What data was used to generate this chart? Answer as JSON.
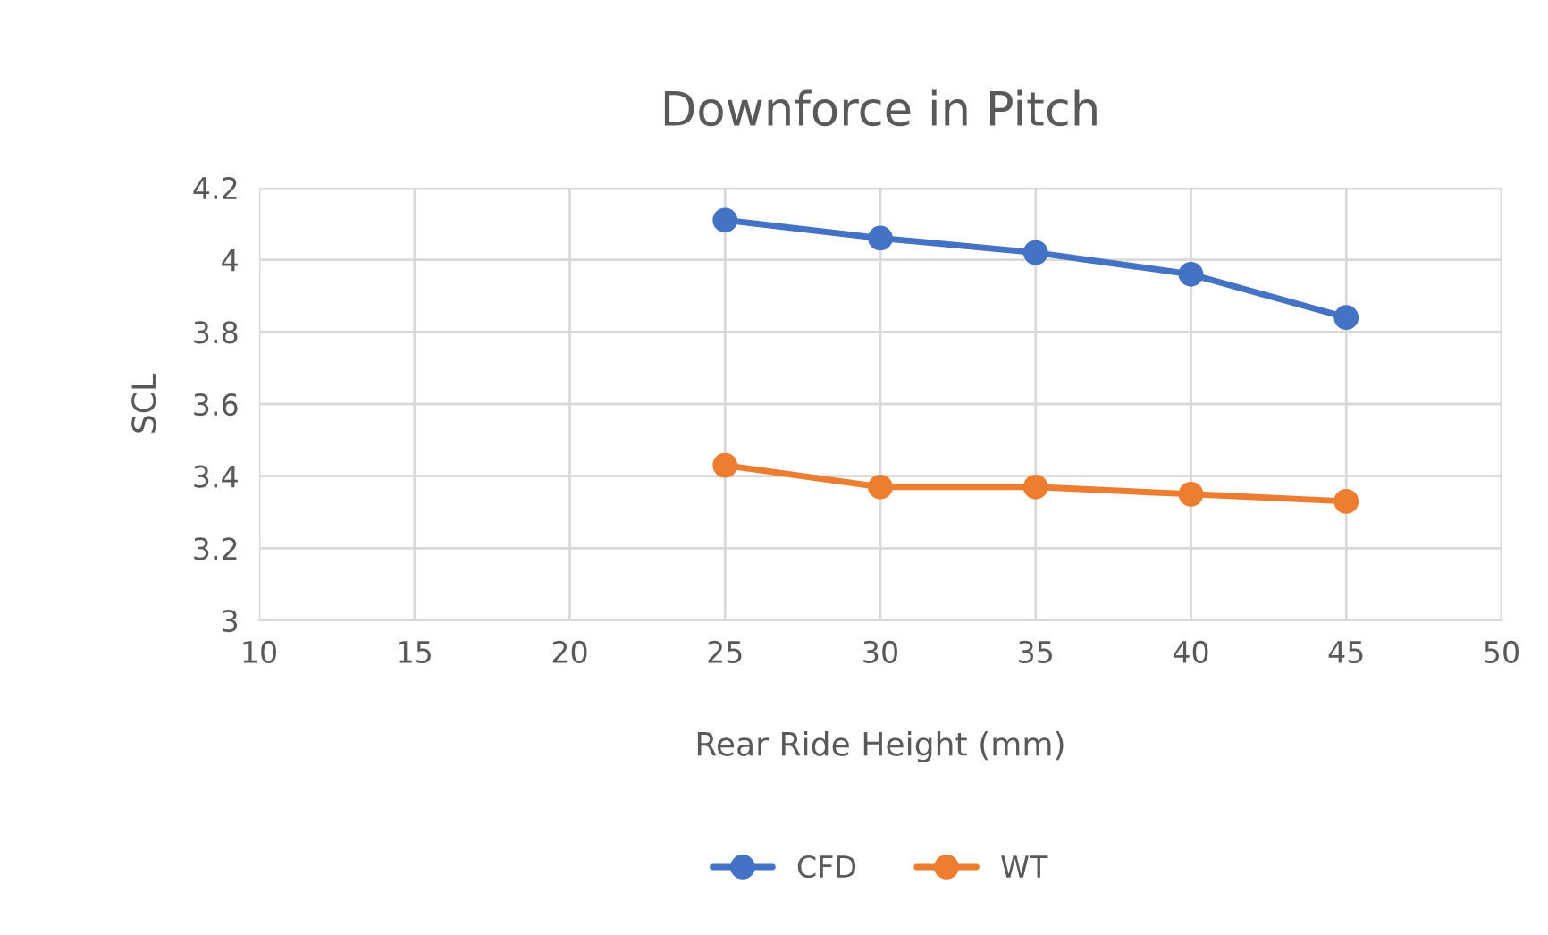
{
  "chart_data": {
    "type": "line",
    "title": "Downforce in Pitch",
    "xlabel": "Rear Ride Height (mm)",
    "ylabel": "SCL",
    "x": [
      25,
      30,
      35,
      40,
      45
    ],
    "series": [
      {
        "name": "CFD",
        "color": "#4472c4",
        "values": [
          4.11,
          4.06,
          4.02,
          3.96,
          3.84
        ]
      },
      {
        "name": "WT",
        "color": "#ed7d31",
        "values": [
          3.43,
          3.37,
          3.37,
          3.35,
          3.33
        ]
      }
    ],
    "xlim": [
      10,
      50
    ],
    "xticks": [
      10,
      15,
      20,
      25,
      30,
      35,
      40,
      45,
      50
    ],
    "ylim": [
      3,
      4.2
    ],
    "yticks": [
      3,
      3.2,
      3.4,
      3.6,
      3.8,
      4,
      4.2
    ],
    "grid": true,
    "legend": "bottom",
    "marker": "circle",
    "line_style": "solid"
  }
}
